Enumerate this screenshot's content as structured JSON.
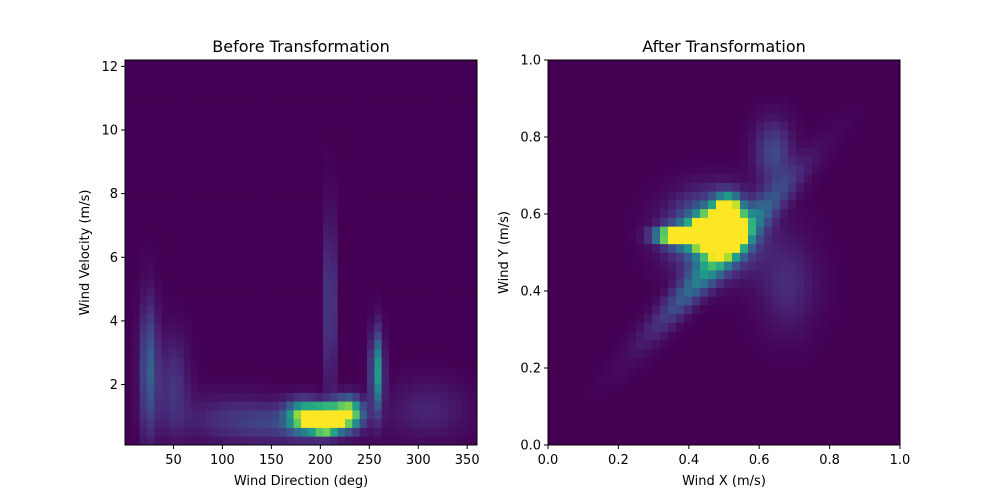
{
  "chart_data": [
    {
      "type": "heatmap",
      "title": "Before Transformation",
      "xlabel": "Wind Direction (deg)",
      "ylabel": "Wind Velocity (m/s)",
      "xlim": [
        0.5,
        360
      ],
      "ylim": [
        0.1,
        12.2
      ],
      "xticks": [
        50,
        100,
        150,
        200,
        250,
        300,
        350
      ],
      "yticks": [
        2,
        4,
        6,
        8,
        10,
        12
      ],
      "colormap": "viridis",
      "grid": false,
      "density_peaks": [
        {
          "x": 205,
          "y": 0.9,
          "intensity": 1.0
        },
        {
          "x": 225,
          "y": 1.1,
          "intensity": 0.55
        },
        {
          "x": 185,
          "y": 1.0,
          "intensity": 0.45
        },
        {
          "x": 255,
          "y": 2.5,
          "intensity": 0.45
        },
        {
          "x": 210,
          "y": 4.0,
          "intensity": 0.3
        },
        {
          "x": 25,
          "y": 3.0,
          "intensity": 0.3
        },
        {
          "x": 50,
          "y": 2.5,
          "intensity": 0.15
        },
        {
          "x": 300,
          "y": 1.5,
          "intensity": 0.12
        }
      ]
    },
    {
      "type": "heatmap",
      "title": "After Transformation",
      "xlabel": "Wind X (m/s)",
      "ylabel": "Wind Y (m/s)",
      "xlim": [
        0.0,
        1.0
      ],
      "ylim": [
        0.0,
        1.0
      ],
      "xticks": [
        0.0,
        0.2,
        0.4,
        0.6,
        0.8,
        1.0
      ],
      "yticks": [
        0.0,
        0.2,
        0.4,
        0.6,
        0.8,
        1.0
      ],
      "colormap": "viridis",
      "grid": false,
      "density_peaks": [
        {
          "x": 0.48,
          "y": 0.55,
          "intensity": 1.0
        },
        {
          "x": 0.38,
          "y": 0.55,
          "intensity": 0.8
        },
        {
          "x": 0.5,
          "y": 0.6,
          "intensity": 0.7
        },
        {
          "x": 0.6,
          "y": 0.7,
          "intensity": 0.35
        },
        {
          "x": 0.35,
          "y": 0.4,
          "intensity": 0.3
        },
        {
          "x": 0.25,
          "y": 0.25,
          "intensity": 0.2
        },
        {
          "x": 0.68,
          "y": 0.4,
          "intensity": 0.15
        }
      ]
    }
  ]
}
